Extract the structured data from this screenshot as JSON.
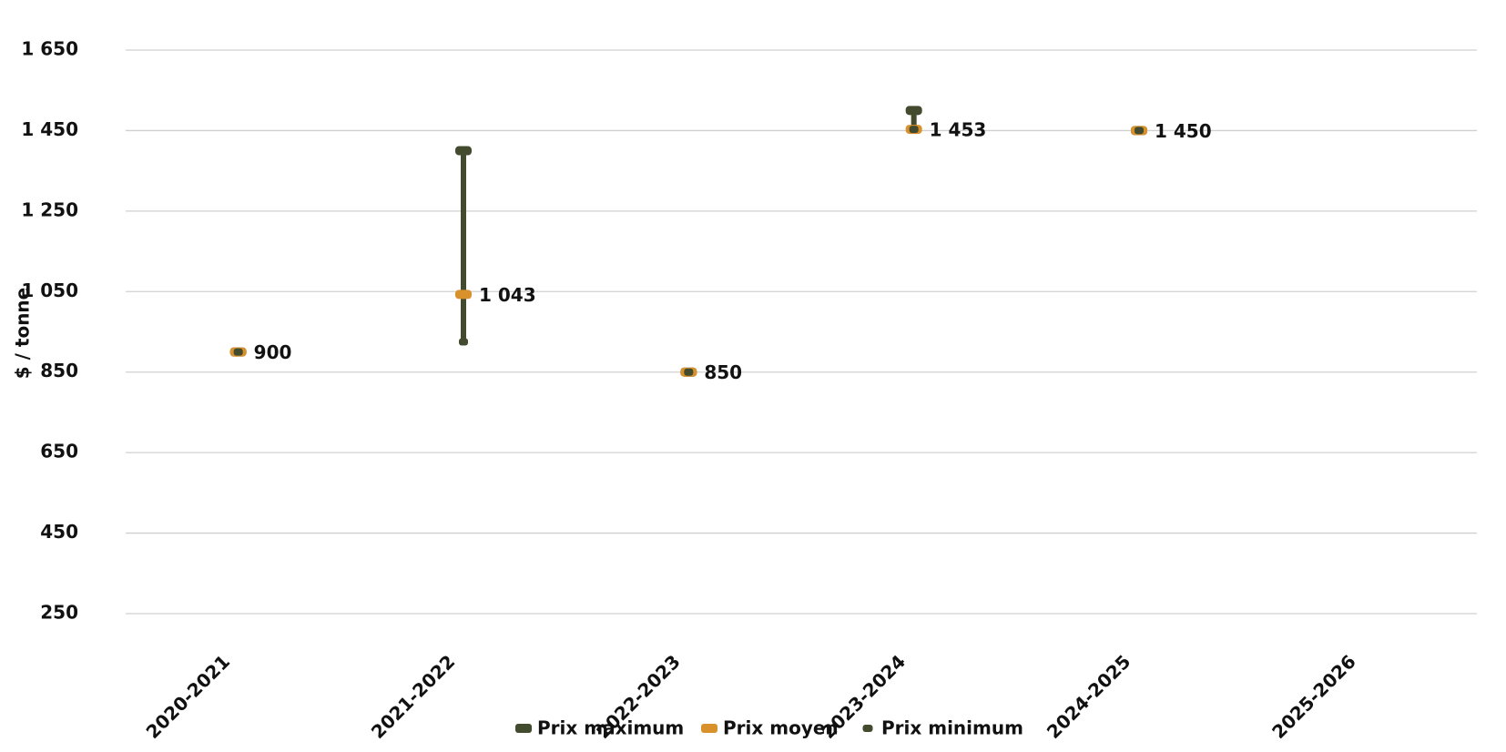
{
  "chart_data": {
    "type": "high-low",
    "y_label": "$ / tonne",
    "categories": [
      "2020-2021",
      "2021-2022",
      "2022-2023",
      "2023-2024",
      "2024-2025",
      "2025-2026"
    ],
    "series": [
      {
        "name": "Prix maximum",
        "color": "#434b2f",
        "values": [
          900,
          1400,
          850,
          1500,
          1450,
          null
        ]
      },
      {
        "name": "Prix moyen",
        "color": "#d9912b",
        "values": [
          900,
          1043,
          850,
          1453,
          1450,
          null
        ],
        "value_labels": [
          "900",
          "1 043",
          "850",
          "1 453",
          "1 450",
          null
        ]
      },
      {
        "name": "Prix minimum",
        "color": "#434b2f",
        "values": [
          900,
          925,
          850,
          1453,
          1450,
          null
        ]
      }
    ],
    "ylim": [
      250,
      1650
    ],
    "yticks": [
      {
        "value": 250,
        "label": "250"
      },
      {
        "value": 450,
        "label": "450"
      },
      {
        "value": 650,
        "label": "650"
      },
      {
        "value": 850,
        "label": "850"
      },
      {
        "value": 1050,
        "label": "1 050"
      },
      {
        "value": 1250,
        "label": "1 250"
      },
      {
        "value": 1450,
        "label": "1 450"
      },
      {
        "value": 1650,
        "label": "1 650"
      }
    ],
    "grid": true,
    "legend": "bottom"
  }
}
